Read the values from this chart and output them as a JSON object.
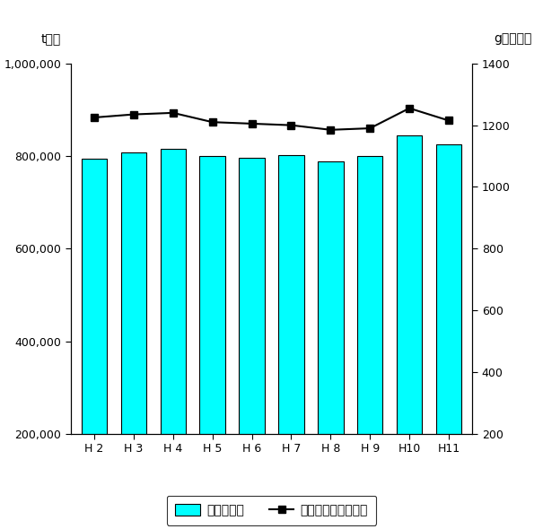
{
  "categories": [
    "H 2",
    "H 3",
    "H 4",
    "H 5",
    "H 6",
    "H 7",
    "H 8",
    "H 9",
    "H10",
    "H11"
  ],
  "bar_values": [
    795000,
    808000,
    815000,
    800000,
    797000,
    803000,
    789000,
    800000,
    845000,
    825000
  ],
  "line_values": [
    1225,
    1235,
    1240,
    1210,
    1205,
    1200,
    1185,
    1190,
    1255,
    1215
  ],
  "bar_color": "#00FFFF",
  "bar_edgecolor": "#000000",
  "line_color": "#000000",
  "marker": "s",
  "marker_size": 6,
  "left_ylabel": "t／年",
  "right_ylabel": "g／人・日",
  "ylim_left": [
    200000,
    1000000
  ],
  "ylim_right": [
    200,
    1400
  ],
  "yticks_left": [
    200000,
    400000,
    600000,
    800000,
    1000000
  ],
  "yticks_right": [
    200,
    400,
    600,
    800,
    1000,
    1200,
    1400
  ],
  "legend_bar_label": "ごみ排出量",
  "legend_line_label": "一人当りごみ排出量",
  "background_color": "#ffffff",
  "figsize": [
    6.05,
    5.9
  ],
  "dpi": 100
}
